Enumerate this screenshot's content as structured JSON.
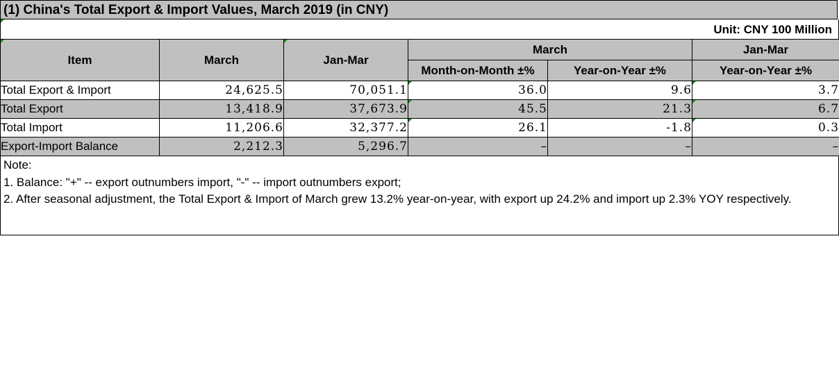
{
  "title": "(1) China's Total Export & Import Values, March 2019 (in CNY)",
  "unit": "Unit: CNY 100 Million",
  "headers": {
    "item": "Item",
    "march": "March",
    "jan_mar": "Jan-Mar",
    "group_march": "March",
    "group_jan_mar": "Jan-Mar",
    "mom": "Month-on-Month ±%",
    "yoy_march": "Year-on-Year ±%",
    "yoy_jan_mar": "Year-on-Year ±%"
  },
  "rows": [
    {
      "item": "Total Export & Import",
      "march": "24,625.5",
      "jan_mar": "70,051.1",
      "mom": "36.0",
      "yoy_march": "9.6",
      "yoy_jan_mar": "3.7"
    },
    {
      "item": "Total Export",
      "march": "13,418.9",
      "jan_mar": "37,673.9",
      "mom": "45.5",
      "yoy_march": "21.3",
      "yoy_jan_mar": "6.7"
    },
    {
      "item": "Total Import",
      "march": "11,206.6",
      "jan_mar": "32,377.2",
      "mom": "26.1",
      "yoy_march": "-1.8",
      "yoy_jan_mar": "0.3"
    },
    {
      "item": "Export-Import Balance",
      "march": "2,212.3",
      "jan_mar": "5,296.7",
      "mom": "–",
      "yoy_march": "–",
      "yoy_jan_mar": "–"
    }
  ],
  "notes": {
    "heading": "Note:",
    "line1": "1. Balance: \"+\" -- export outnumbers import, \"-\" -- import outnumbers export;",
    "line2": "2. After seasonal adjustment, the Total Export & Import of March grew 13.2% year-on-year, with export up 24.2% and import up 2.3% YOY respectively."
  },
  "colors": {
    "header_fill": "#c0c0c0",
    "shaded_row": "#c0c0c0",
    "cell_marker": "#1a8a1a"
  }
}
